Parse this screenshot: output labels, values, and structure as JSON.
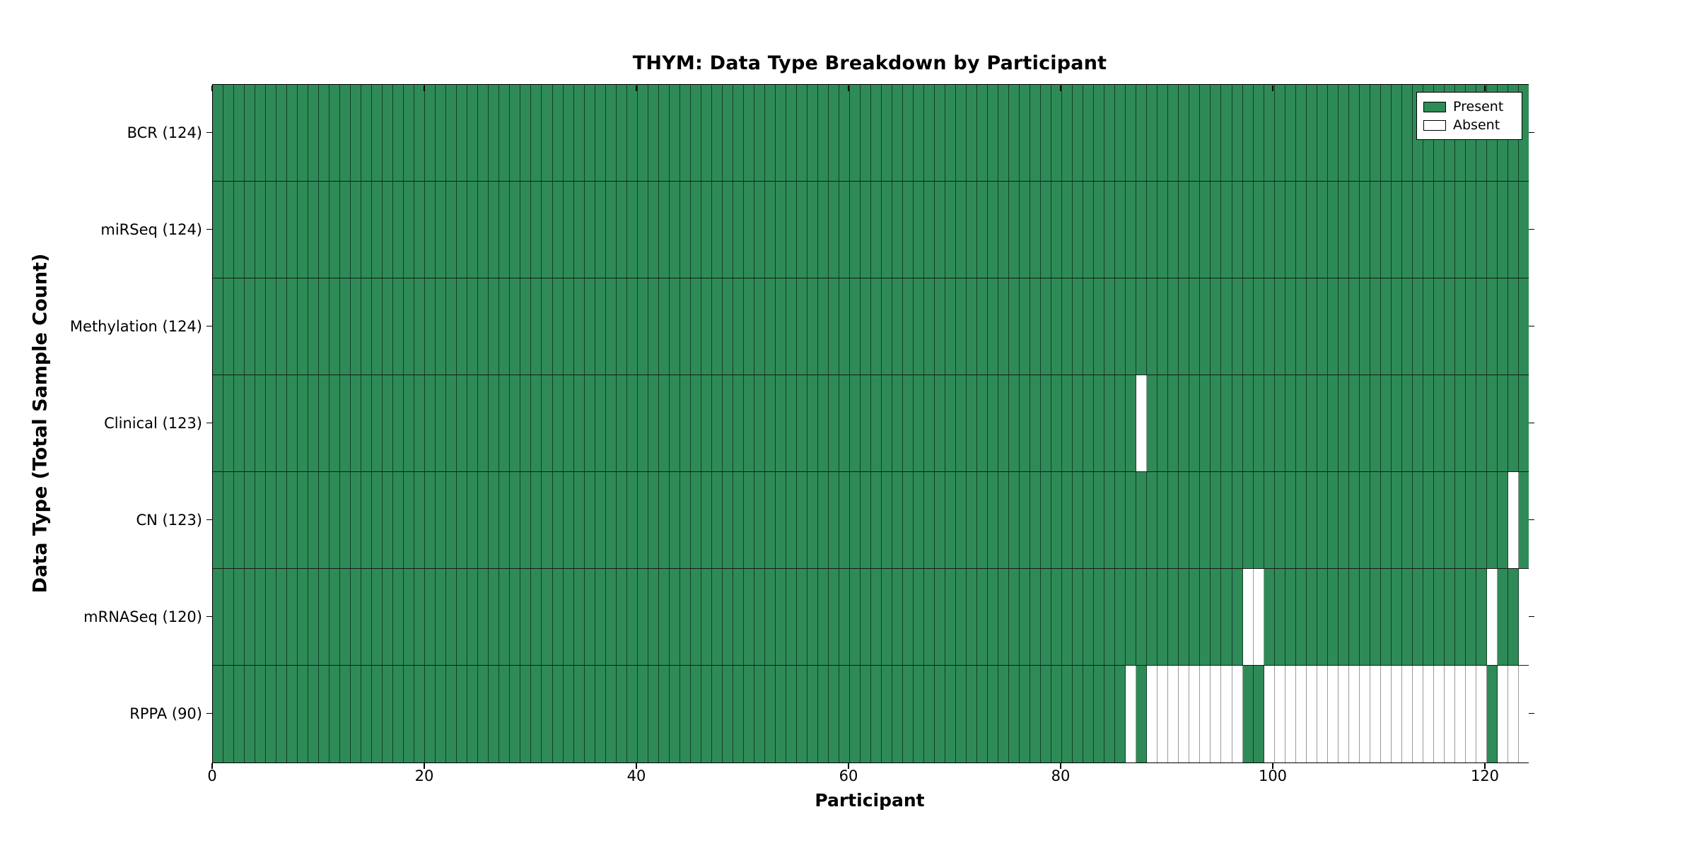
{
  "title": "THYM: Data Type Breakdown by Participant",
  "axes": {
    "xlabel": "Participant",
    "ylabel": "Data Type (Total Sample Count)",
    "x_ticks": [
      "0",
      "20",
      "40",
      "60",
      "80",
      "100",
      "120"
    ]
  },
  "legend": {
    "items": [
      {
        "label": "Present",
        "color": "#2e8b57"
      },
      {
        "label": "Absent",
        "color": "#ffffff"
      }
    ]
  },
  "colors": {
    "present": "#2e8b57",
    "absent": "#ffffff",
    "present_edge": "rgba(0,0,0,0.55)",
    "absent_edge": "#9a9a9a",
    "axis": "#000000"
  },
  "chart_data": {
    "type": "heatmap",
    "title": "THYM: Data Type Breakdown by Participant",
    "xlabel": "Participant",
    "ylabel": "Data Type (Total Sample Count)",
    "n_participants": 124,
    "x_range": [
      0,
      124
    ],
    "x_ticks": [
      0,
      20,
      40,
      60,
      80,
      100,
      120
    ],
    "grid": false,
    "legend": [
      "Present",
      "Absent"
    ],
    "legend_position": "upper right",
    "rows": [
      {
        "label": "BCR (124)",
        "data_type": "BCR",
        "total_samples": 124,
        "absent_participants": []
      },
      {
        "label": "miRSeq (124)",
        "data_type": "miRSeq",
        "total_samples": 124,
        "absent_participants": []
      },
      {
        "label": "Methylation (124)",
        "data_type": "Methylation",
        "total_samples": 124,
        "absent_participants": []
      },
      {
        "label": "Clinical (123)",
        "data_type": "Clinical",
        "total_samples": 123,
        "absent_participants": [
          87
        ]
      },
      {
        "label": "CN (123)",
        "data_type": "CN",
        "total_samples": 123,
        "absent_participants": [
          122
        ]
      },
      {
        "label": "mRNASeq (120)",
        "data_type": "mRNASeq",
        "total_samples": 120,
        "absent_participants": [
          97,
          98,
          120,
          123
        ]
      },
      {
        "label": "RPPA (90)",
        "data_type": "RPPA",
        "total_samples": 90,
        "absent_participants": [
          86,
          88,
          89,
          90,
          91,
          92,
          93,
          94,
          95,
          96,
          99,
          100,
          101,
          102,
          103,
          104,
          105,
          106,
          107,
          108,
          109,
          110,
          111,
          112,
          113,
          114,
          115,
          116,
          117,
          118,
          119,
          121,
          122,
          123
        ]
      }
    ]
  }
}
